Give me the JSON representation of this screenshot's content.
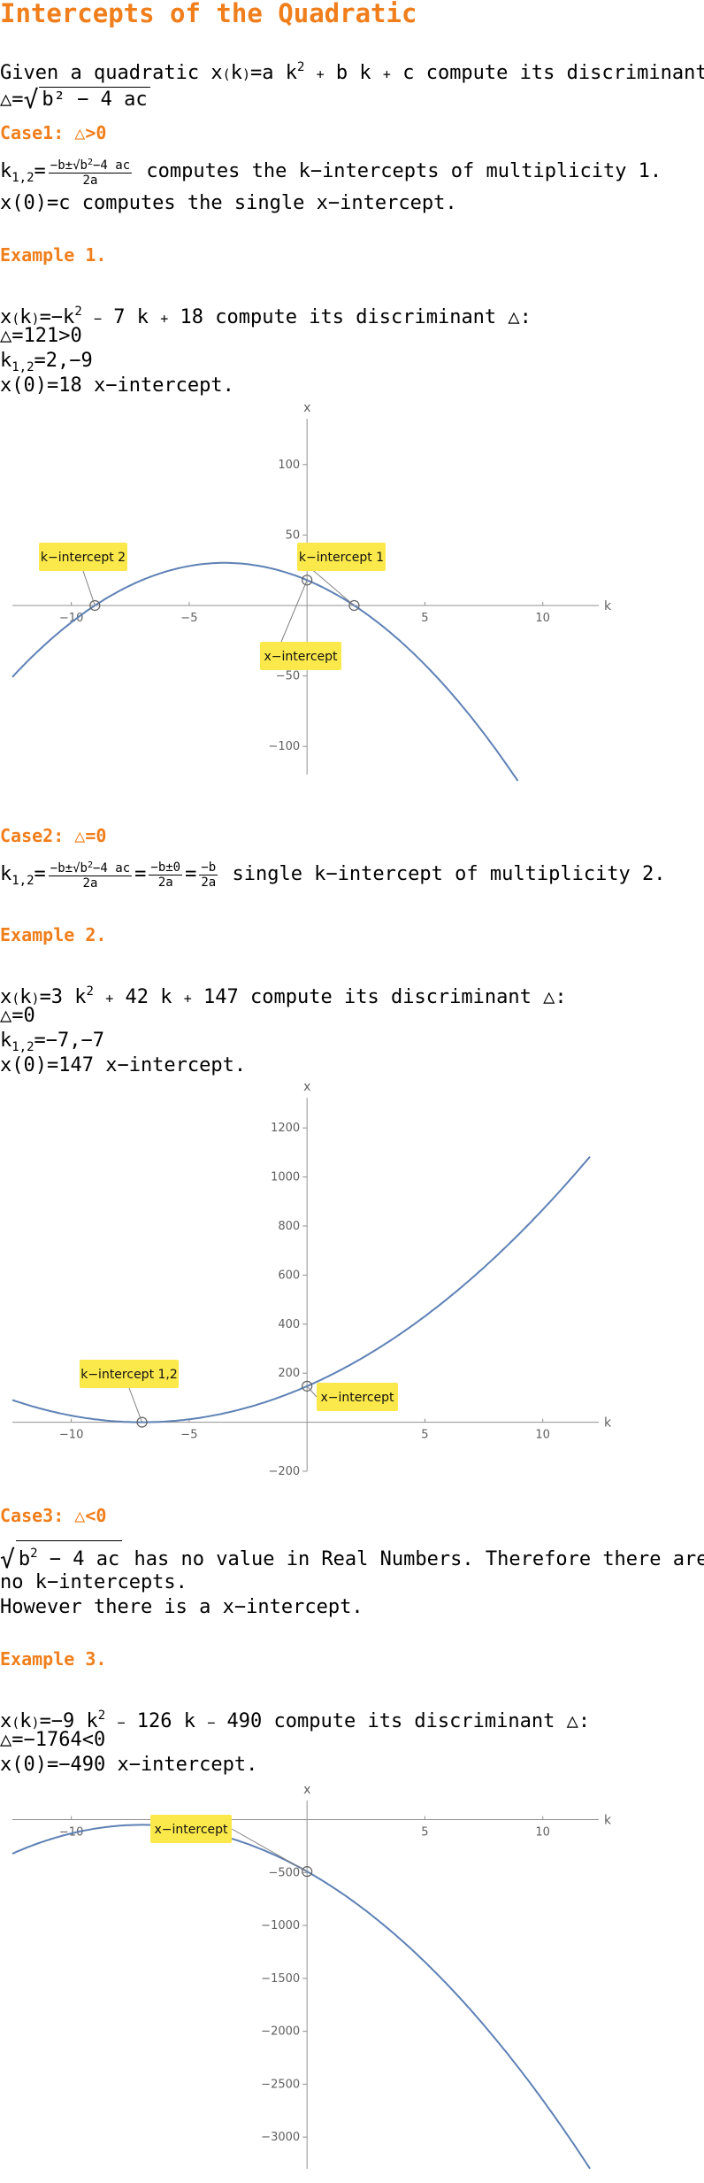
{
  "title": "Intercepts of the Quadratic",
  "intro": {
    "given_lead": "Given a quadratic ",
    "given_tail": " compute its discriminant △:",
    "disc_formula": "b² − 4 ac"
  },
  "case1": {
    "heading": "Case1: △>0",
    "line1_tail": " computes the k−intercepts of multiplicity 1.",
    "line2": "x(0)=c computes the single x−intercept."
  },
  "example1": {
    "heading": "Example 1.",
    "line1_tail": " compute its discriminant △:",
    "line2": "△=121>0",
    "line3_val": "=2,−9",
    "line4": "x(0)=18  x−intercept."
  },
  "case2": {
    "heading": "Case2: △=0",
    "line1_tail": " single k−intercept of multiplicity 2."
  },
  "example2": {
    "heading": "Example 2.",
    "line1_tail": " compute its discriminant △:",
    "line2": "△=0",
    "line3_val": "=−7,−7",
    "line4": "x(0)=147  x−intercept."
  },
  "case3": {
    "heading": "Case3: △<0",
    "line1_tail": " has no value in Real Numbers. Therefore there are",
    "line2": "no k−intercepts.",
    "line3": "However there is a x−intercept."
  },
  "example3": {
    "heading": "Example 3.",
    "line1_tail": " compute its discriminant △:",
    "line2": "△=−1764<0",
    "line3": "x(0)=−490 x−intercept."
  },
  "chart_data": [
    {
      "type": "line",
      "function": "x(k) = −k² − 7k + 18",
      "coefficients": {
        "a": -1,
        "b": -7,
        "c": 18
      },
      "xlabel": "k",
      "ylabel": "x",
      "xlim": [
        -12.5,
        12
      ],
      "ylim": [
        -120,
        125
      ],
      "x_ticks": [
        -10,
        -5,
        5,
        10
      ],
      "y_ticks": [
        -100,
        -50,
        50,
        100
      ],
      "points": [
        {
          "k": -9,
          "x": 0
        },
        {
          "k": 2,
          "x": 0
        },
        {
          "k": 0,
          "x": 18
        }
      ],
      "annotations": [
        "k−intercept 2",
        "k−intercept 1",
        "x−intercept"
      ],
      "color": "#5e81b5"
    },
    {
      "type": "line",
      "function": "x(k) = 3k² + 42k + 147",
      "coefficients": {
        "a": 3,
        "b": 42,
        "c": 147
      },
      "xlabel": "k",
      "ylabel": "x",
      "xlim": [
        -12.5,
        12
      ],
      "ylim": [
        -200,
        1280
      ],
      "x_ticks": [
        -10,
        -5,
        5,
        10
      ],
      "y_ticks": [
        -200,
        200,
        400,
        600,
        800,
        1000,
        1200
      ],
      "points": [
        {
          "k": -7,
          "x": 0
        },
        {
          "k": 0,
          "x": 147
        }
      ],
      "annotations": [
        "k−intercept 1,2",
        "x−intercept"
      ],
      "color": "#5e81b5"
    },
    {
      "type": "line",
      "function": "x(k) = −9k² − 126k − 490",
      "coefficients": {
        "a": -9,
        "b": -126,
        "c": -490
      },
      "xlabel": "k",
      "ylabel": "x",
      "xlim": [
        -12.5,
        12
      ],
      "ylim": [
        -3300,
        80
      ],
      "x_ticks": [
        -10,
        -5,
        5,
        10
      ],
      "y_ticks": [
        -500,
        -1000,
        -1500,
        -2000,
        -2500,
        -3000
      ],
      "points": [
        {
          "k": 0,
          "x": -490
        }
      ],
      "annotations": [
        "x−intercept"
      ],
      "color": "#5e81b5"
    }
  ]
}
